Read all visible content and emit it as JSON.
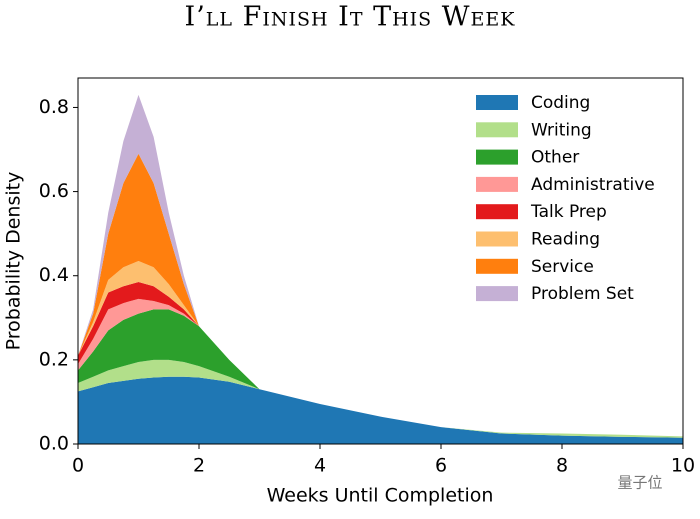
{
  "chart_data": {
    "type": "stacked-area",
    "title": "I’ll Finish It This Week",
    "x_label": "Weeks Until Completion",
    "y_label": "Probability Density",
    "x": [
      0,
      0.25,
      0.5,
      0.75,
      1,
      1.25,
      1.5,
      1.75,
      2,
      2.5,
      3,
      4,
      5,
      6,
      7,
      8,
      9,
      10
    ],
    "series": [
      {
        "name": "Coding",
        "color": "#1f77b4",
        "values": [
          0.125,
          0.135,
          0.145,
          0.15,
          0.155,
          0.158,
          0.16,
          0.16,
          0.158,
          0.148,
          0.13,
          0.095,
          0.065,
          0.04,
          0.025,
          0.02,
          0.017,
          0.015
        ]
      },
      {
        "name": "Writing",
        "color": "#b2df8a",
        "values": [
          0.02,
          0.025,
          0.03,
          0.035,
          0.04,
          0.042,
          0.04,
          0.035,
          0.027,
          0.012,
          0,
          0,
          0,
          0,
          0.002,
          0.005,
          0.005,
          0.003
        ]
      },
      {
        "name": "Other",
        "color": "#2ca02c",
        "values": [
          0.03,
          0.06,
          0.095,
          0.11,
          0.115,
          0.12,
          0.12,
          0.11,
          0.095,
          0.04,
          0,
          0,
          0,
          0,
          0,
          0,
          0,
          0
        ]
      },
      {
        "name": "Administrative",
        "color": "#ff9896",
        "values": [
          0.015,
          0.03,
          0.05,
          0.04,
          0.035,
          0.02,
          0.01,
          0.005,
          0,
          0,
          0,
          0,
          0,
          0,
          0,
          0,
          0,
          0
        ]
      },
      {
        "name": "Talk Prep",
        "color": "#e31a1c",
        "values": [
          0.02,
          0.03,
          0.04,
          0.04,
          0.04,
          0.035,
          0.02,
          0.01,
          0,
          0,
          0,
          0,
          0,
          0,
          0,
          0,
          0,
          0
        ]
      },
      {
        "name": "Reading",
        "color": "#fdbf6f",
        "values": [
          0,
          0.01,
          0.03,
          0.045,
          0.05,
          0.045,
          0.03,
          0.01,
          0,
          0,
          0,
          0,
          0,
          0,
          0,
          0,
          0,
          0
        ]
      },
      {
        "name": "Service",
        "color": "#ff7f0e",
        "values": [
          0,
          0.02,
          0.11,
          0.2,
          0.255,
          0.2,
          0.12,
          0.05,
          0,
          0,
          0,
          0,
          0,
          0,
          0,
          0,
          0,
          0
        ]
      },
      {
        "name": "Problem Set",
        "color": "#c5b0d5",
        "values": [
          0,
          0.01,
          0.05,
          0.1,
          0.14,
          0.11,
          0.05,
          0.02,
          0,
          0,
          0,
          0,
          0,
          0,
          0,
          0,
          0,
          0
        ]
      }
    ],
    "xlim": [
      0,
      10
    ],
    "xticks": [
      0,
      2,
      4,
      6,
      8,
      10
    ],
    "ylim": [
      0,
      0.87
    ],
    "yticks": [
      {
        "value": 0,
        "label": "0.0"
      },
      0.2,
      0.4,
      0.6,
      0.8
    ],
    "legend": "upper-right",
    "watermark": "量子位"
  }
}
